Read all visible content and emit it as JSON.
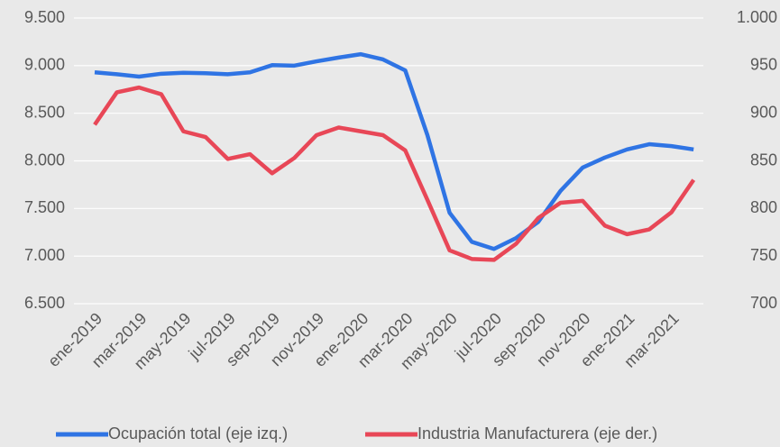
{
  "chart_data": {
    "type": "line",
    "categories": [
      "ene-2019",
      null,
      "mar-2019",
      null,
      "may-2019",
      null,
      "jul-2019",
      null,
      "sep-2019",
      null,
      "nov-2019",
      null,
      "ene-2020",
      null,
      "mar-2020",
      null,
      "may-2020",
      null,
      "jul-2020",
      null,
      "sep-2020",
      null,
      "nov-2020",
      null,
      "ene-2021",
      null,
      "mar-2021",
      null
    ],
    "series": [
      {
        "name": "Ocupación total (eje izq.)",
        "color": "#2f74e4",
        "values": [
          8930,
          8910,
          8885,
          8915,
          8925,
          8920,
          8910,
          8930,
          9005,
          9000,
          9045,
          9085,
          9120,
          9065,
          8950,
          8270,
          7455,
          7150,
          7075,
          7190,
          7360,
          7685,
          7930,
          8035,
          8120,
          8175,
          8155,
          8120
        ]
      },
      {
        "name": "Industria Manufacturera (eje der.)",
        "color": "#e84757",
        "axis": "y2",
        "values": [
          888,
          922,
          927,
          920,
          881,
          875,
          852,
          857,
          837,
          853,
          877,
          885,
          881,
          877,
          861,
          809,
          756,
          747,
          746,
          763,
          790,
          806,
          808,
          782,
          773,
          778,
          796,
          830
        ]
      }
    ],
    "ylim": [
      6500,
      9500
    ],
    "yticks": [
      {
        "value": 6500,
        "label": "6.500"
      },
      {
        "value": 7000,
        "label": "7.000"
      },
      {
        "value": 7500,
        "label": "7.500"
      },
      {
        "value": 8000,
        "label": "8.000"
      },
      {
        "value": 8500,
        "label": "8.500"
      },
      {
        "value": 9000,
        "label": "9.000"
      },
      {
        "value": 9500,
        "label": "9.500"
      }
    ],
    "y2lim": [
      700,
      1000
    ],
    "y2ticks": [
      700,
      750,
      800,
      850,
      900,
      950,
      {
        "value": 1000,
        "label": "1.000"
      }
    ],
    "grid": true,
    "legend": "bottom"
  }
}
